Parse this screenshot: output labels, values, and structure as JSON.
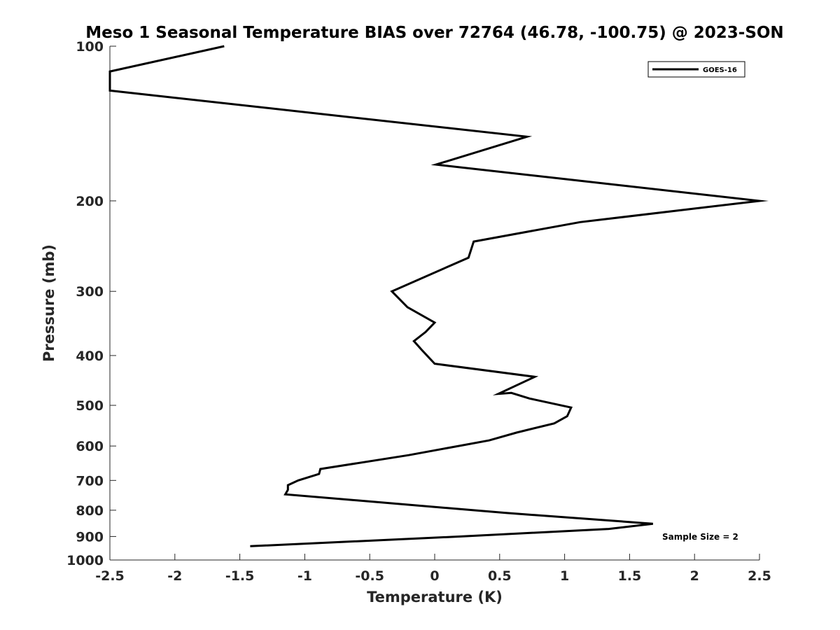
{
  "chart_data": {
    "type": "line",
    "title": "Meso 1 Seasonal Temperature BIAS over 72764 (46.78, -100.75) @ 2023-SON",
    "xlabel": "Temperature (K)",
    "ylabel": "Pressure (mb)",
    "xlim": [
      -2.5,
      2.5
    ],
    "ylim": [
      100,
      1000
    ],
    "yscale": "log",
    "yreversed": true,
    "xticks": [
      "-2.5",
      "-2",
      "-1.5",
      "-1",
      "-0.5",
      "0",
      "0.5",
      "1",
      "1.5",
      "2",
      "2.5"
    ],
    "xtick_values": [
      -2.5,
      -2,
      -1.5,
      -1,
      -0.5,
      0,
      0.5,
      1,
      1.5,
      2,
      2.5
    ],
    "yticks": [
      "100",
      "200",
      "300",
      "400",
      "500",
      "600",
      "700",
      "800",
      "900",
      "1000"
    ],
    "ytick_values": [
      100,
      200,
      300,
      400,
      500,
      600,
      700,
      800,
      900,
      1000
    ],
    "legend_position": "top-right",
    "annotation": "Sample Size = 2",
    "series": [
      {
        "name": "GOES-16",
        "color": "#000000",
        "x": [
          -1.62,
          -2.5,
          -2.5,
          0.71,
          0.01,
          2.5,
          1.12,
          0.3,
          0.26,
          -0.33,
          -0.21,
          0.0,
          -0.07,
          -0.16,
          -0.1,
          0.0,
          0.77,
          0.49,
          0.59,
          0.73,
          1.05,
          1.02,
          0.92,
          0.63,
          0.42,
          -0.2,
          -0.88,
          -0.89,
          -1.05,
          -1.13,
          -1.13,
          -1.15,
          0.55,
          1.68,
          1.34,
          0.2,
          -1.42
        ],
        "y": [
          100,
          112,
          122,
          150,
          170,
          200,
          220,
          240,
          258,
          300,
          322,
          345,
          360,
          375,
          390,
          415,
          440,
          475,
          473,
          485,
          505,
          525,
          542,
          565,
          585,
          625,
          665,
          680,
          700,
          715,
          730,
          745,
          810,
          850,
          870,
          900,
          940
        ]
      }
    ]
  }
}
